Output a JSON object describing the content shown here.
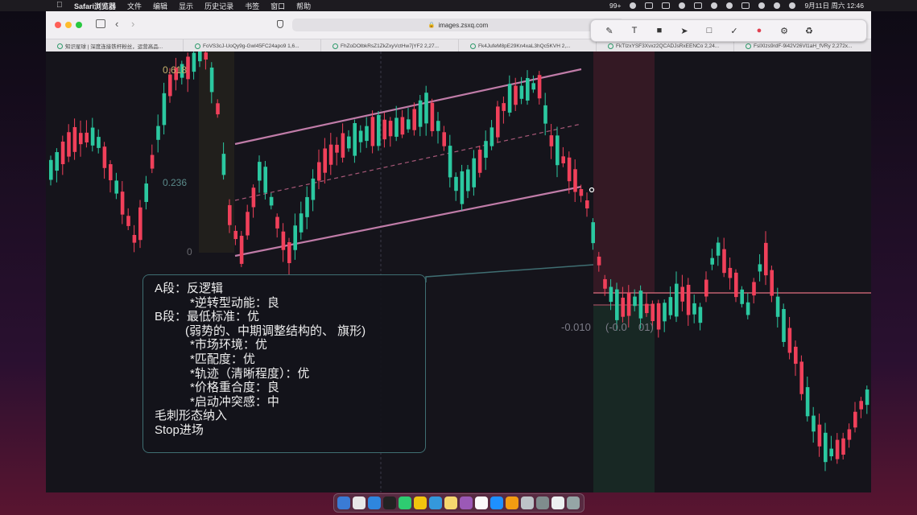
{
  "menubar": {
    "app_name": "Safari浏览器",
    "menus": [
      "文件",
      "编辑",
      "显示",
      "历史记录",
      "书签",
      "窗口",
      "帮助"
    ],
    "badge": "99+",
    "clock": "9月11日 周六  12:46"
  },
  "browser": {
    "url": "images.zsxq.com",
    "tabs": [
      "知识星球 | 深度连接铁杆粉丝，运营高品...",
      "FoVS3cJ-UoQy9g-Gwl45FC24apo9 1,6...",
      "FhZoDOlbkRsZ1ZkZxyVctHw7jYF2 2,27...",
      "Fk4JufeM8pE29Kn4xaL3hQc5KVH 2,...",
      "FkTIzxYSF3Xvxz2QCADJsRxEENCo 2,24...",
      "FslXlzs9rdF-9i42V26Vl1aH_fVRy 2,272x..."
    ]
  },
  "chart": {
    "fib_labels": [
      "0.618",
      "0.236",
      "0"
    ],
    "price_labels": [
      "-0.010",
      "(-0.0",
      "01)"
    ],
    "colors": {
      "up": "#2bc8a0",
      "down": "#f0405a",
      "channel": "#c07ca8",
      "box": "#3f6e72"
    }
  },
  "note": {
    "lines": [
      "A段：反逻辑",
      "*逆转型动能：良",
      "B段：最低标准：优",
      "(弱势的、中期调整结构的、 旗形)",
      "*市场环境：优",
      "*匹配度：优",
      "*轨迹（清晰程度）：优",
      "*价格重合度：良",
      "*启动冲突感：中",
      "毛刺形态纳入",
      "Stop进场"
    ]
  }
}
